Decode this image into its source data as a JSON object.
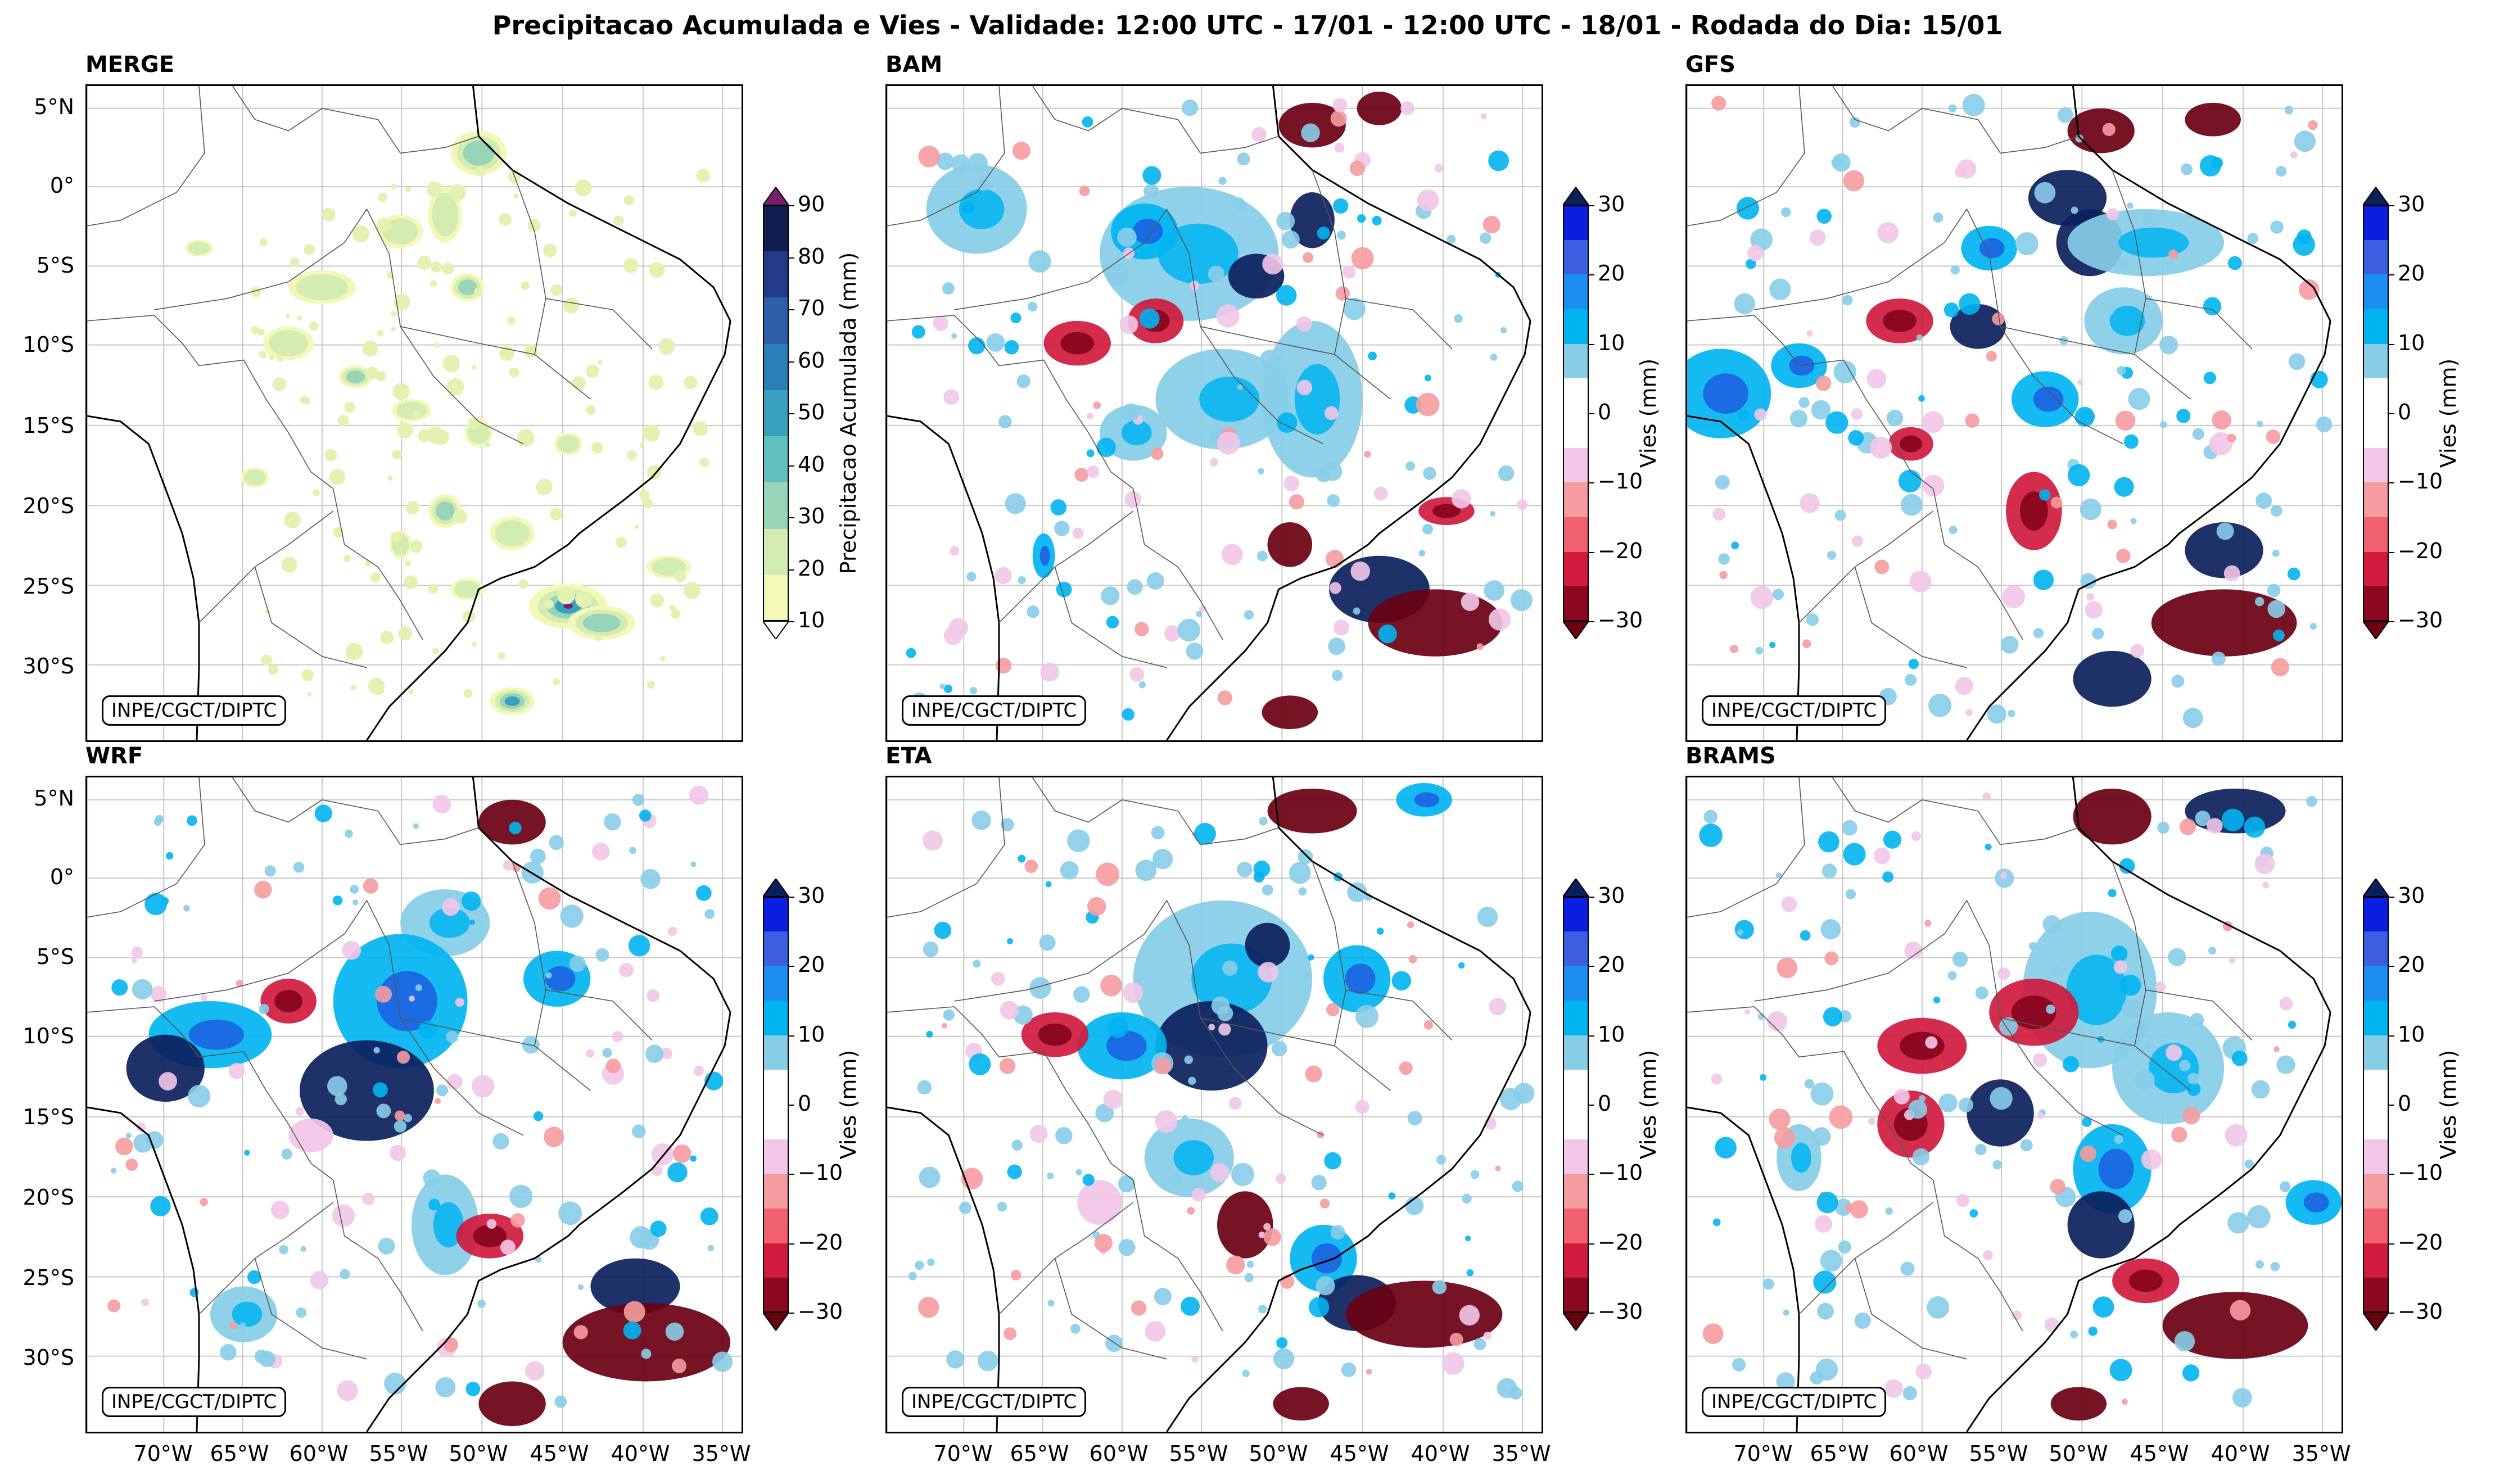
{
  "title": "Precipitacao Acumulada e Vies - Validade: 12:00 UTC - 17/01 - 12:00 UTC - 18/01 - Rodada do Dia: 15/01",
  "credit": "INPE/CGCT/DIPTC",
  "lat_labels": [
    "5°N",
    "0°",
    "5°S",
    "10°S",
    "15°S",
    "20°S",
    "25°S",
    "30°S"
  ],
  "lon_labels": [
    "70°W",
    "65°W",
    "60°W",
    "55°W",
    "50°W",
    "45°W",
    "40°W",
    "35°W"
  ],
  "panels": [
    {
      "name": "MERGE",
      "kind": "precip"
    },
    {
      "name": "BAM",
      "kind": "bias"
    },
    {
      "name": "GFS",
      "kind": "bias"
    },
    {
      "name": "WRF",
      "kind": "bias"
    },
    {
      "name": "ETA",
      "kind": "bias"
    },
    {
      "name": "BRAMS",
      "kind": "bias"
    }
  ],
  "colorbars": {
    "precip": {
      "label": "Precipitacao Acumulada (mm)",
      "ticks": [
        "90",
        "80",
        "70",
        "60",
        "50",
        "40",
        "30",
        "20",
        "10"
      ],
      "colors": [
        "#0f1d4f",
        "#233a86",
        "#2c5fa8",
        "#2b7fb7",
        "#3aa0c0",
        "#62bfbf",
        "#97d4b8",
        "#d3ecb2",
        "#f3f8b6"
      ],
      "over": "#7a1f6e",
      "under": "#ffffff"
    },
    "bias": {
      "label": "Vies (mm)",
      "ticks": [
        "30",
        "20",
        "10",
        "0",
        "−10",
        "−20",
        "−30"
      ],
      "colors": [
        "#0a1ee0",
        "#3b5fe0",
        "#1c8ef0",
        "#00b4f0",
        "#87cde8",
        "#ffffff",
        "#ffffff",
        "#f2c6e8",
        "#f59ca0",
        "#f0606f",
        "#d01a3e",
        "#8c0820"
      ],
      "over": "#0b1f5c",
      "under": "#6a0012"
    }
  }
}
